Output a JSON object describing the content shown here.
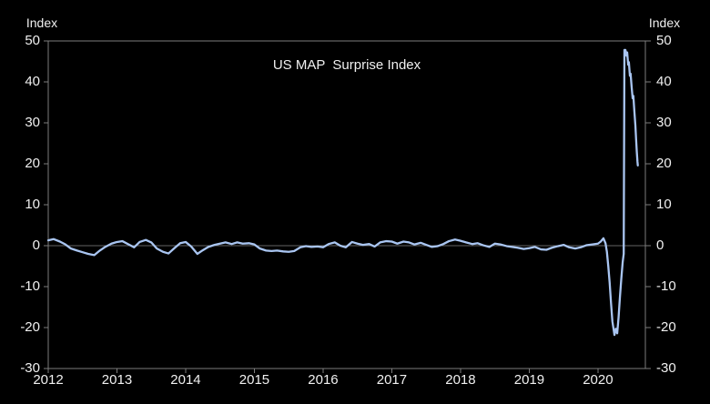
{
  "chart_data": {
    "type": "line",
    "title": "US MAP  Surprise Index",
    "y_axis_unit_left": "Index",
    "y_axis_unit_right": "Index",
    "xlabel": "",
    "ylabel": "Index",
    "xlim": [
      2012,
      2020.69
    ],
    "ylim": [
      -30,
      50
    ],
    "y_ticks": [
      50,
      40,
      30,
      20,
      10,
      0,
      -10,
      -20,
      -30
    ],
    "x_ticks": [
      2012,
      2013,
      2014,
      2015,
      2016,
      2017,
      2018,
      2019,
      2020
    ],
    "grid": "zero-line-only",
    "zero_line": true,
    "legend": "none",
    "colors": {
      "background": "#000000",
      "line": "#a9c5f1",
      "axis": "#7d7d7d",
      "zero_line": "#636363",
      "text": "#f0f0f0"
    },
    "series": [
      {
        "name": "US MAP Surprise Index",
        "points": [
          [
            2012.0,
            1.3
          ],
          [
            2012.08,
            1.6
          ],
          [
            2012.17,
            1.0
          ],
          [
            2012.25,
            0.3
          ],
          [
            2012.33,
            -0.7
          ],
          [
            2012.42,
            -1.2
          ],
          [
            2012.5,
            -1.6
          ],
          [
            2012.58,
            -2.0
          ],
          [
            2012.67,
            -2.3
          ],
          [
            2012.75,
            -1.2
          ],
          [
            2012.83,
            -0.3
          ],
          [
            2012.92,
            0.5
          ],
          [
            2013.0,
            0.9
          ],
          [
            2013.08,
            1.1
          ],
          [
            2013.17,
            0.3
          ],
          [
            2013.25,
            -0.4
          ],
          [
            2013.33,
            0.9
          ],
          [
            2013.42,
            1.4
          ],
          [
            2013.5,
            0.8
          ],
          [
            2013.58,
            -0.7
          ],
          [
            2013.67,
            -1.5
          ],
          [
            2013.75,
            -1.9
          ],
          [
            2013.83,
            -0.7
          ],
          [
            2013.92,
            0.6
          ],
          [
            2014.0,
            0.9
          ],
          [
            2014.08,
            -0.2
          ],
          [
            2014.17,
            -2.0
          ],
          [
            2014.25,
            -1.1
          ],
          [
            2014.33,
            -0.3
          ],
          [
            2014.42,
            0.2
          ],
          [
            2014.5,
            0.5
          ],
          [
            2014.58,
            0.8
          ],
          [
            2014.67,
            0.4
          ],
          [
            2014.75,
            0.8
          ],
          [
            2014.83,
            0.5
          ],
          [
            2014.92,
            0.6
          ],
          [
            2015.0,
            0.3
          ],
          [
            2015.08,
            -0.7
          ],
          [
            2015.17,
            -1.2
          ],
          [
            2015.25,
            -1.3
          ],
          [
            2015.33,
            -1.2
          ],
          [
            2015.42,
            -1.4
          ],
          [
            2015.5,
            -1.5
          ],
          [
            2015.58,
            -1.3
          ],
          [
            2015.67,
            -0.4
          ],
          [
            2015.75,
            -0.1
          ],
          [
            2015.83,
            -0.3
          ],
          [
            2015.92,
            -0.2
          ],
          [
            2016.0,
            -0.4
          ],
          [
            2016.08,
            0.4
          ],
          [
            2016.17,
            0.8
          ],
          [
            2016.25,
            0.0
          ],
          [
            2016.33,
            -0.4
          ],
          [
            2016.42,
            0.9
          ],
          [
            2016.5,
            0.5
          ],
          [
            2016.58,
            0.2
          ],
          [
            2016.67,
            0.4
          ],
          [
            2016.75,
            -0.2
          ],
          [
            2016.83,
            0.8
          ],
          [
            2016.92,
            1.1
          ],
          [
            2017.0,
            1.0
          ],
          [
            2017.08,
            0.5
          ],
          [
            2017.17,
            1.0
          ],
          [
            2017.25,
            0.8
          ],
          [
            2017.33,
            0.3
          ],
          [
            2017.42,
            0.7
          ],
          [
            2017.5,
            0.2
          ],
          [
            2017.58,
            -0.3
          ],
          [
            2017.67,
            -0.1
          ],
          [
            2017.75,
            0.4
          ],
          [
            2017.83,
            1.1
          ],
          [
            2017.92,
            1.5
          ],
          [
            2018.0,
            1.2
          ],
          [
            2018.08,
            0.8
          ],
          [
            2018.17,
            0.4
          ],
          [
            2018.25,
            0.6
          ],
          [
            2018.33,
            0.1
          ],
          [
            2018.42,
            -0.3
          ],
          [
            2018.5,
            0.5
          ],
          [
            2018.58,
            0.3
          ],
          [
            2018.67,
            -0.1
          ],
          [
            2018.75,
            -0.3
          ],
          [
            2018.83,
            -0.5
          ],
          [
            2018.92,
            -0.8
          ],
          [
            2019.0,
            -0.6
          ],
          [
            2019.08,
            -0.3
          ],
          [
            2019.17,
            -0.9
          ],
          [
            2019.25,
            -1.0
          ],
          [
            2019.33,
            -0.5
          ],
          [
            2019.42,
            -0.1
          ],
          [
            2019.5,
            0.2
          ],
          [
            2019.58,
            -0.4
          ],
          [
            2019.67,
            -0.7
          ],
          [
            2019.75,
            -0.4
          ],
          [
            2019.83,
            0.1
          ],
          [
            2019.92,
            0.3
          ],
          [
            2020.0,
            0.5
          ],
          [
            2020.04,
            1.0
          ],
          [
            2020.08,
            1.8
          ],
          [
            2020.11,
            0.6
          ],
          [
            2020.13,
            -1.5
          ],
          [
            2020.15,
            -5.0
          ],
          [
            2020.17,
            -9.0
          ],
          [
            2020.19,
            -14.0
          ],
          [
            2020.21,
            -18.5
          ],
          [
            2020.24,
            -21.8
          ],
          [
            2020.26,
            -20.3
          ],
          [
            2020.28,
            -21.4
          ],
          [
            2020.3,
            -17.5
          ],
          [
            2020.32,
            -12.5
          ],
          [
            2020.34,
            -8.0
          ],
          [
            2020.36,
            -4.0
          ],
          [
            2020.375,
            -2.0
          ],
          [
            2020.385,
            47.8
          ],
          [
            2020.4,
            47.8
          ],
          [
            2020.415,
            46.4
          ],
          [
            2020.425,
            47.2
          ],
          [
            2020.44,
            44.2
          ],
          [
            2020.45,
            44.8
          ],
          [
            2020.465,
            41.5
          ],
          [
            2020.475,
            42.0
          ],
          [
            2020.49,
            38.8
          ],
          [
            2020.505,
            36.0
          ],
          [
            2020.515,
            36.6
          ],
          [
            2020.53,
            32.8
          ],
          [
            2020.545,
            29.3
          ],
          [
            2020.555,
            26.0
          ],
          [
            2020.565,
            23.0
          ],
          [
            2020.575,
            20.5
          ],
          [
            2020.58,
            19.6
          ]
        ]
      }
    ]
  }
}
